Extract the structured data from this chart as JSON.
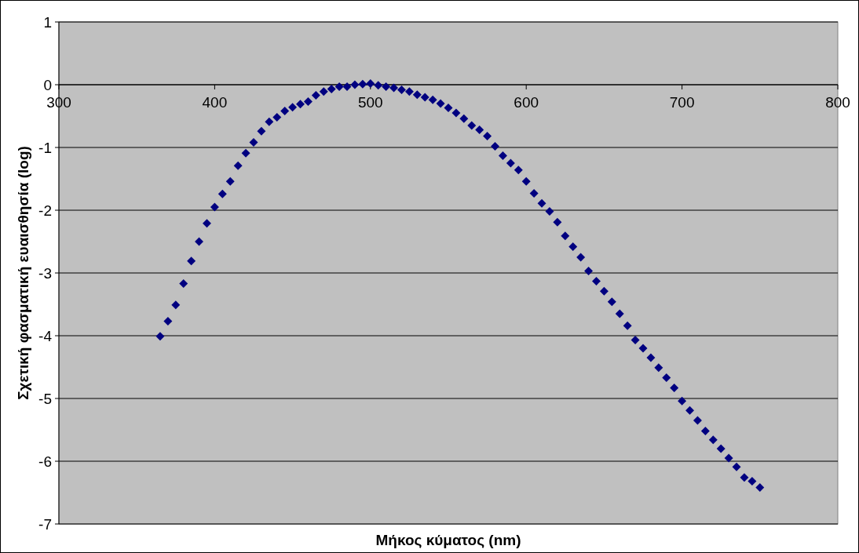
{
  "chart_data": {
    "type": "scatter",
    "xlabel": "Μήκος κύματος (nm)",
    "ylabel": "Σχετική φασματική ευαισθησία (log)",
    "x": [
      365,
      370,
      375,
      380,
      385,
      390,
      395,
      400,
      405,
      410,
      415,
      420,
      425,
      430,
      435,
      440,
      445,
      450,
      455,
      460,
      465,
      470,
      475,
      480,
      485,
      490,
      495,
      500,
      505,
      510,
      515,
      520,
      525,
      530,
      535,
      540,
      545,
      550,
      555,
      560,
      565,
      570,
      575,
      580,
      585,
      590,
      595,
      600,
      605,
      610,
      615,
      620,
      625,
      630,
      635,
      640,
      645,
      650,
      655,
      660,
      665,
      670,
      675,
      680,
      685,
      690,
      695,
      700,
      705,
      710,
      715,
      720,
      725,
      730,
      735,
      740,
      745,
      750
    ],
    "series": [
      {
        "color": "#000080",
        "values": [
          -4.01,
          -3.77,
          -3.51,
          -3.17,
          -2.81,
          -2.5,
          -2.21,
          -1.95,
          -1.74,
          -1.54,
          -1.29,
          -1.09,
          -0.92,
          -0.74,
          -0.59,
          -0.52,
          -0.42,
          -0.36,
          -0.31,
          -0.27,
          -0.17,
          -0.11,
          -0.07,
          -0.03,
          -0.03,
          0,
          0.01,
          0.02,
          -0.01,
          -0.03,
          -0.05,
          -0.08,
          -0.11,
          -0.16,
          -0.2,
          -0.24,
          -0.3,
          -0.37,
          -0.45,
          -0.54,
          -0.65,
          -0.72,
          -0.82,
          -0.98,
          -1.13,
          -1.25,
          -1.36,
          -1.54,
          -1.73,
          -1.89,
          -2.02,
          -2.19,
          -2.41,
          -2.58,
          -2.75,
          -2.97,
          -3.13,
          -3.29,
          -3.46,
          -3.65,
          -3.84,
          -4.07,
          -4.2,
          -4.35,
          -4.51,
          -4.67,
          -4.83,
          -5.04,
          -5.19,
          -5.35,
          -5.52,
          -5.66,
          -5.8,
          -5.95,
          -6.09,
          -6.26,
          -6.32,
          -6.42
        ]
      }
    ],
    "xlim": [
      300,
      800
    ],
    "xticks": [
      300,
      400,
      500,
      600,
      700,
      800
    ],
    "ylim": [
      -7,
      1
    ],
    "yticks": [
      -7,
      -6,
      -5,
      -4,
      -3,
      -2,
      -1,
      0,
      1
    ],
    "grid": "y",
    "marker": "diamond"
  }
}
